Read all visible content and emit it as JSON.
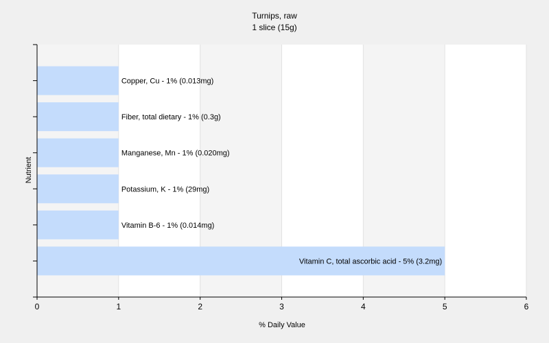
{
  "chart_data": {
    "type": "bar",
    "orientation": "horizontal",
    "title": "Turnips, raw",
    "subtitle": "1 slice (15g)",
    "xlabel": "% Daily Value",
    "ylabel": "Nutrient",
    "xlim": [
      0,
      6
    ],
    "xticks": [
      "0",
      "1",
      "2",
      "3",
      "4",
      "5",
      "6"
    ],
    "grid": true,
    "categories": [
      "Copper, Cu",
      "Fiber, total dietary",
      "Manganese, Mn",
      "Potassium, K",
      "Vitamin B-6",
      "Vitamin C, total ascorbic acid"
    ],
    "values": [
      1,
      1,
      1,
      1,
      1,
      5
    ],
    "bar_labels": [
      "Copper, Cu - 1% (0.013mg)",
      "Fiber, total dietary - 1% (0.3g)",
      "Manganese, Mn - 1% (0.020mg)",
      "Potassium, K - 1% (29mg)",
      "Vitamin B-6 - 1% (0.014mg)",
      "Vitamin C, total ascorbic acid - 5% (3.2mg)"
    ],
    "colors": {
      "bar": "#c4dcfc",
      "plot_background_light": "#ffffff",
      "plot_background_dark": "#f4f4f4",
      "grid": "#e2e2e2",
      "axis": "#000000"
    }
  }
}
